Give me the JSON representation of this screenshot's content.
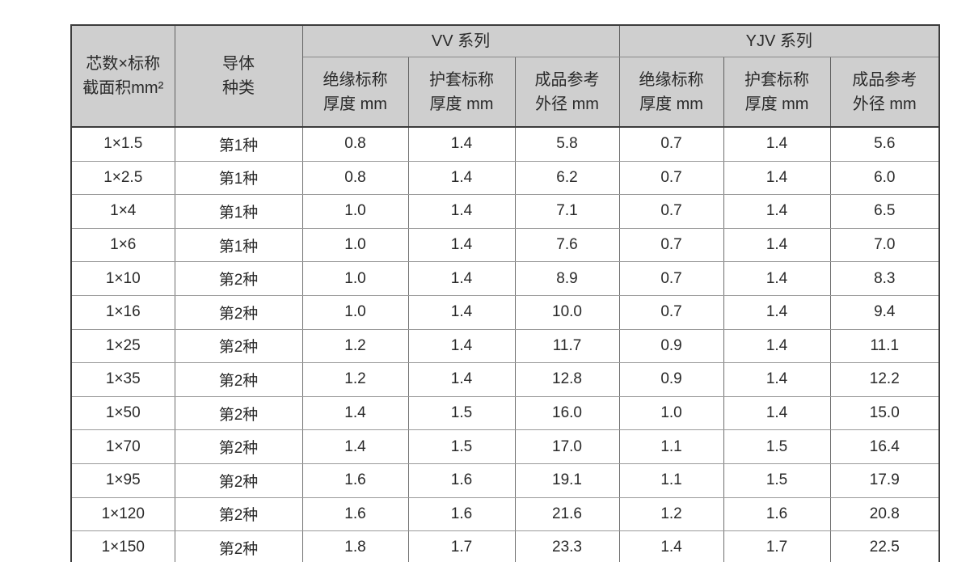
{
  "table": {
    "headers": {
      "spec": "芯数×标称\n截面积mm²",
      "conductor": "导体\n种类",
      "groups": [
        {
          "label": "VV 系列"
        },
        {
          "label": "YJV 系列"
        }
      ],
      "sub": [
        "绝缘标称\n厚度 mm",
        "护套标称\n厚度 mm",
        "成品参考\n外径 mm",
        "绝缘标称\n厚度 mm",
        "护套标称\n厚度 mm",
        "成品参考\n外径 mm"
      ]
    },
    "rows": [
      [
        "1×1.5",
        "第1种",
        "0.8",
        "1.4",
        "5.8",
        "0.7",
        "1.4",
        "5.6"
      ],
      [
        "1×2.5",
        "第1种",
        "0.8",
        "1.4",
        "6.2",
        "0.7",
        "1.4",
        "6.0"
      ],
      [
        "1×4",
        "第1种",
        "1.0",
        "1.4",
        "7.1",
        "0.7",
        "1.4",
        "6.5"
      ],
      [
        "1×6",
        "第1种",
        "1.0",
        "1.4",
        "7.6",
        "0.7",
        "1.4",
        "7.0"
      ],
      [
        "1×10",
        "第2种",
        "1.0",
        "1.4",
        "8.9",
        "0.7",
        "1.4",
        "8.3"
      ],
      [
        "1×16",
        "第2种",
        "1.0",
        "1.4",
        "10.0",
        "0.7",
        "1.4",
        "9.4"
      ],
      [
        "1×25",
        "第2种",
        "1.2",
        "1.4",
        "11.7",
        "0.9",
        "1.4",
        "11.1"
      ],
      [
        "1×35",
        "第2种",
        "1.2",
        "1.4",
        "12.8",
        "0.9",
        "1.4",
        "12.2"
      ],
      [
        "1×50",
        "第2种",
        "1.4",
        "1.5",
        "16.0",
        "1.0",
        "1.4",
        "15.0"
      ],
      [
        "1×70",
        "第2种",
        "1.4",
        "1.5",
        "17.0",
        "1.1",
        "1.5",
        "16.4"
      ],
      [
        "1×95",
        "第2种",
        "1.6",
        "1.6",
        "19.1",
        "1.1",
        "1.5",
        "17.9"
      ],
      [
        "1×120",
        "第2种",
        "1.6",
        "1.6",
        "21.6",
        "1.2",
        "1.6",
        "20.8"
      ],
      [
        "1×150",
        "第2种",
        "1.8",
        "1.7",
        "23.3",
        "1.4",
        "1.7",
        "22.5"
      ]
    ],
    "colors": {
      "header_bg": "#cfcfcf",
      "outer_border": "#3c3c3c",
      "inner_vertical": "#6e6e6e",
      "inner_horizontal": "#9a9a9a",
      "text": "#2a2a2a"
    }
  }
}
